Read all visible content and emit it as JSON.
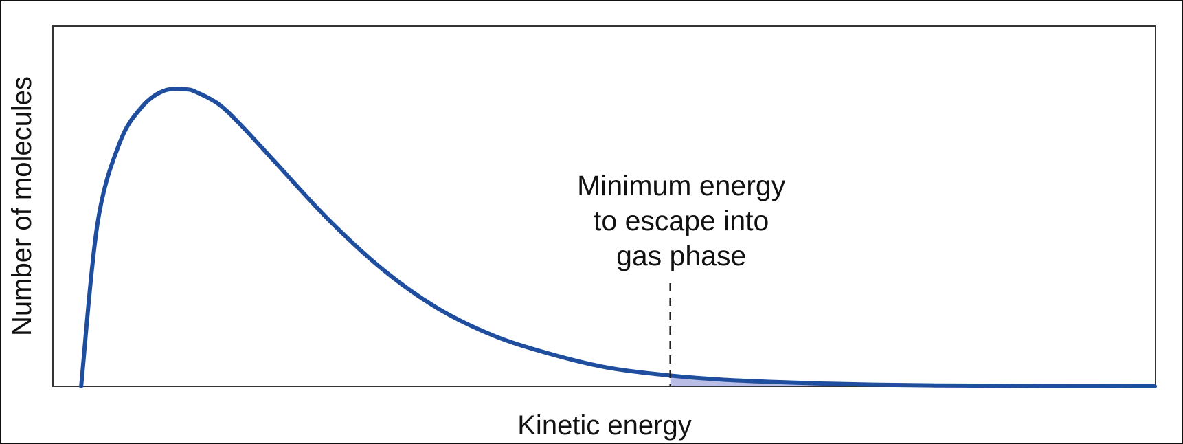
{
  "chart_data": {
    "type": "line",
    "xlabel": "Kinetic energy",
    "ylabel": "Number of molecules",
    "xlim": [
      0,
      1
    ],
    "ylim": [
      0,
      1
    ],
    "grid": false,
    "legend": "none",
    "series": [
      {
        "line_color": "#1f4e9e",
        "shade_color": "#b9bde6",
        "x": [
          0.025,
          0.04,
          0.06,
          0.08,
          0.1,
          0.12,
          0.13,
          0.15,
          0.17,
          0.2,
          0.25,
          0.3,
          0.35,
          0.4,
          0.45,
          0.5,
          0.55,
          0.6,
          0.65,
          0.7,
          0.75,
          0.8,
          0.85,
          0.9,
          0.95,
          1.0
        ],
        "y": [
          0.0,
          0.55,
          0.82,
          0.94,
          0.995,
          1.0,
          0.99,
          0.95,
          0.88,
          0.76,
          0.56,
          0.39,
          0.26,
          0.17,
          0.11,
          0.065,
          0.04,
          0.024,
          0.015,
          0.009,
          0.005,
          0.003,
          0.002,
          0.001,
          0.0005,
          0.0
        ]
      }
    ],
    "threshold": {
      "x": 0.56,
      "label_lines": [
        "Minimum energy",
        "to escape into",
        "gas phase"
      ]
    }
  }
}
